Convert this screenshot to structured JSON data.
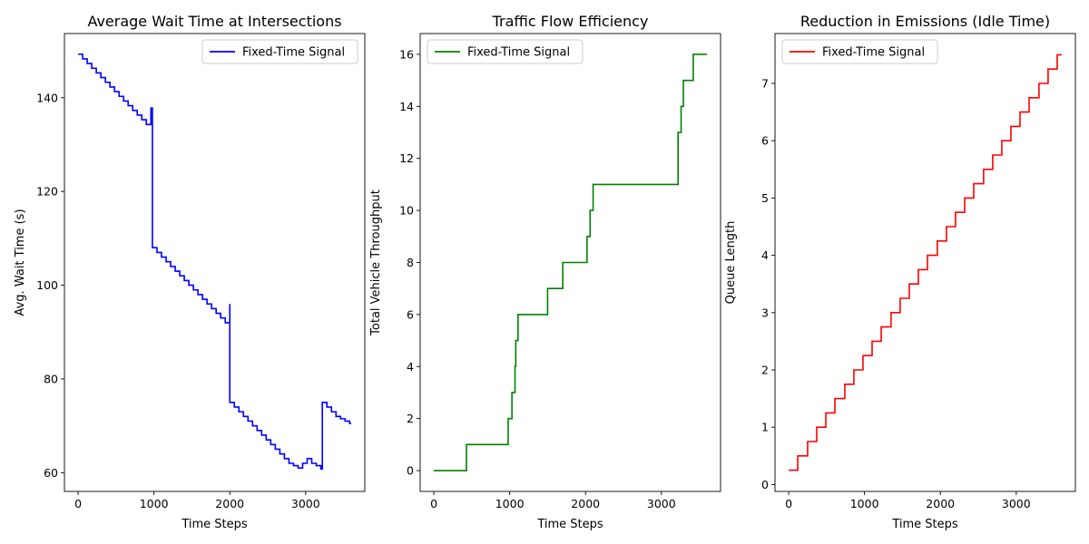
{
  "chart_data": [
    {
      "type": "line",
      "title": "Average Wait Time at Intersections",
      "xlabel": "Time Steps",
      "ylabel": "Avg. Wait Time (s)",
      "xlim": [
        -180,
        3780
      ],
      "ylim": [
        56.0,
        153.7
      ],
      "xticks": [
        0,
        1000,
        2000,
        3000
      ],
      "yticks": [
        60,
        80,
        100,
        120,
        140
      ],
      "legend": "top-right",
      "grid": false,
      "series": [
        {
          "name": "Fixed-Time Signal",
          "color": "#0000ff",
          "step": true,
          "points": [
            [
              0,
              149.3
            ],
            [
              60,
              148.3
            ],
            [
              120,
              147.3
            ],
            [
              180,
              146.3
            ],
            [
              240,
              145.3
            ],
            [
              300,
              144.3
            ],
            [
              360,
              143.3
            ],
            [
              420,
              142.3
            ],
            [
              480,
              141.3
            ],
            [
              540,
              140.3
            ],
            [
              600,
              139.3
            ],
            [
              660,
              138.3
            ],
            [
              720,
              137.3
            ],
            [
              780,
              136.3
            ],
            [
              840,
              135.3
            ],
            [
              900,
              134.3
            ],
            [
              960,
              137.8
            ],
            [
              980,
              108
            ],
            [
              1040,
              107
            ],
            [
              1100,
              106
            ],
            [
              1160,
              105
            ],
            [
              1220,
              104
            ],
            [
              1280,
              103
            ],
            [
              1340,
              102
            ],
            [
              1400,
              101
            ],
            [
              1460,
              100
            ],
            [
              1520,
              99
            ],
            [
              1580,
              98
            ],
            [
              1640,
              97
            ],
            [
              1700,
              96
            ],
            [
              1760,
              95
            ],
            [
              1820,
              94
            ],
            [
              1880,
              93
            ],
            [
              1940,
              92
            ],
            [
              2000,
              96
            ],
            [
              2000,
              75
            ],
            [
              2060,
              74
            ],
            [
              2120,
              73
            ],
            [
              2180,
              72
            ],
            [
              2240,
              71
            ],
            [
              2300,
              70
            ],
            [
              2360,
              69
            ],
            [
              2420,
              68
            ],
            [
              2480,
              67
            ],
            [
              2540,
              66
            ],
            [
              2600,
              65
            ],
            [
              2660,
              64
            ],
            [
              2720,
              63
            ],
            [
              2780,
              62
            ],
            [
              2840,
              61.5
            ],
            [
              2900,
              61
            ],
            [
              2960,
              62
            ],
            [
              3020,
              63
            ],
            [
              3080,
              62
            ],
            [
              3140,
              61.5
            ],
            [
              3200,
              60.8
            ],
            [
              3220,
              75
            ],
            [
              3280,
              74
            ],
            [
              3340,
              73
            ],
            [
              3400,
              72
            ],
            [
              3460,
              71.5
            ],
            [
              3520,
              71
            ],
            [
              3580,
              70.5
            ],
            [
              3600,
              70.5
            ]
          ]
        }
      ]
    },
    {
      "type": "line",
      "title": "Traffic Flow Efficiency",
      "xlabel": "Time Steps",
      "ylabel": "Total Vehicle Throughput",
      "xlim": [
        -180,
        3780
      ],
      "ylim": [
        -0.8,
        16.8
      ],
      "xticks": [
        0,
        1000,
        2000,
        3000
      ],
      "yticks": [
        0,
        2,
        4,
        6,
        8,
        10,
        12,
        14,
        16
      ],
      "legend": "top-left",
      "grid": false,
      "series": [
        {
          "name": "Fixed-Time Signal",
          "color": "#008000",
          "step": true,
          "points": [
            [
              0,
              0
            ],
            [
              430,
              1
            ],
            [
              980,
              2
            ],
            [
              1030,
              3
            ],
            [
              1070,
              4
            ],
            [
              1080,
              5
            ],
            [
              1110,
              6
            ],
            [
              1500,
              7
            ],
            [
              1700,
              8
            ],
            [
              2020,
              9
            ],
            [
              2060,
              10
            ],
            [
              2100,
              11
            ],
            [
              3220,
              13
            ],
            [
              3260,
              14
            ],
            [
              3290,
              15
            ],
            [
              3420,
              16
            ],
            [
              3600,
              16
            ]
          ]
        }
      ]
    },
    {
      "type": "line",
      "title": "Reduction in Emissions (Idle Time)",
      "xlabel": "Time Steps",
      "ylabel": "Queue Length",
      "xlim": [
        -180,
        3780
      ],
      "ylim": [
        -0.12,
        7.87
      ],
      "xticks": [
        0,
        1000,
        2000,
        3000
      ],
      "yticks": [
        0,
        1,
        2,
        3,
        4,
        5,
        6,
        7
      ],
      "legend": "top-left",
      "grid": false,
      "series": [
        {
          "name": "Fixed-Time Signal",
          "color": "#ff0000",
          "step": true,
          "points": [
            [
              0,
              0.25
            ],
            [
              120,
              0.5
            ],
            [
              250,
              0.75
            ],
            [
              370,
              1.0
            ],
            [
              490,
              1.25
            ],
            [
              610,
              1.5
            ],
            [
              740,
              1.75
            ],
            [
              860,
              2.0
            ],
            [
              980,
              2.25
            ],
            [
              1100,
              2.5
            ],
            [
              1220,
              2.75
            ],
            [
              1350,
              3.0
            ],
            [
              1470,
              3.25
            ],
            [
              1590,
              3.5
            ],
            [
              1710,
              3.75
            ],
            [
              1830,
              4.0
            ],
            [
              1960,
              4.25
            ],
            [
              2080,
              4.5
            ],
            [
              2200,
              4.75
            ],
            [
              2320,
              5.0
            ],
            [
              2440,
              5.25
            ],
            [
              2570,
              5.5
            ],
            [
              2690,
              5.75
            ],
            [
              2810,
              6.0
            ],
            [
              2930,
              6.25
            ],
            [
              3050,
              6.5
            ],
            [
              3170,
              6.75
            ],
            [
              3300,
              7.0
            ],
            [
              3420,
              7.25
            ],
            [
              3540,
              7.5
            ],
            [
              3600,
              7.5
            ]
          ]
        }
      ]
    }
  ]
}
